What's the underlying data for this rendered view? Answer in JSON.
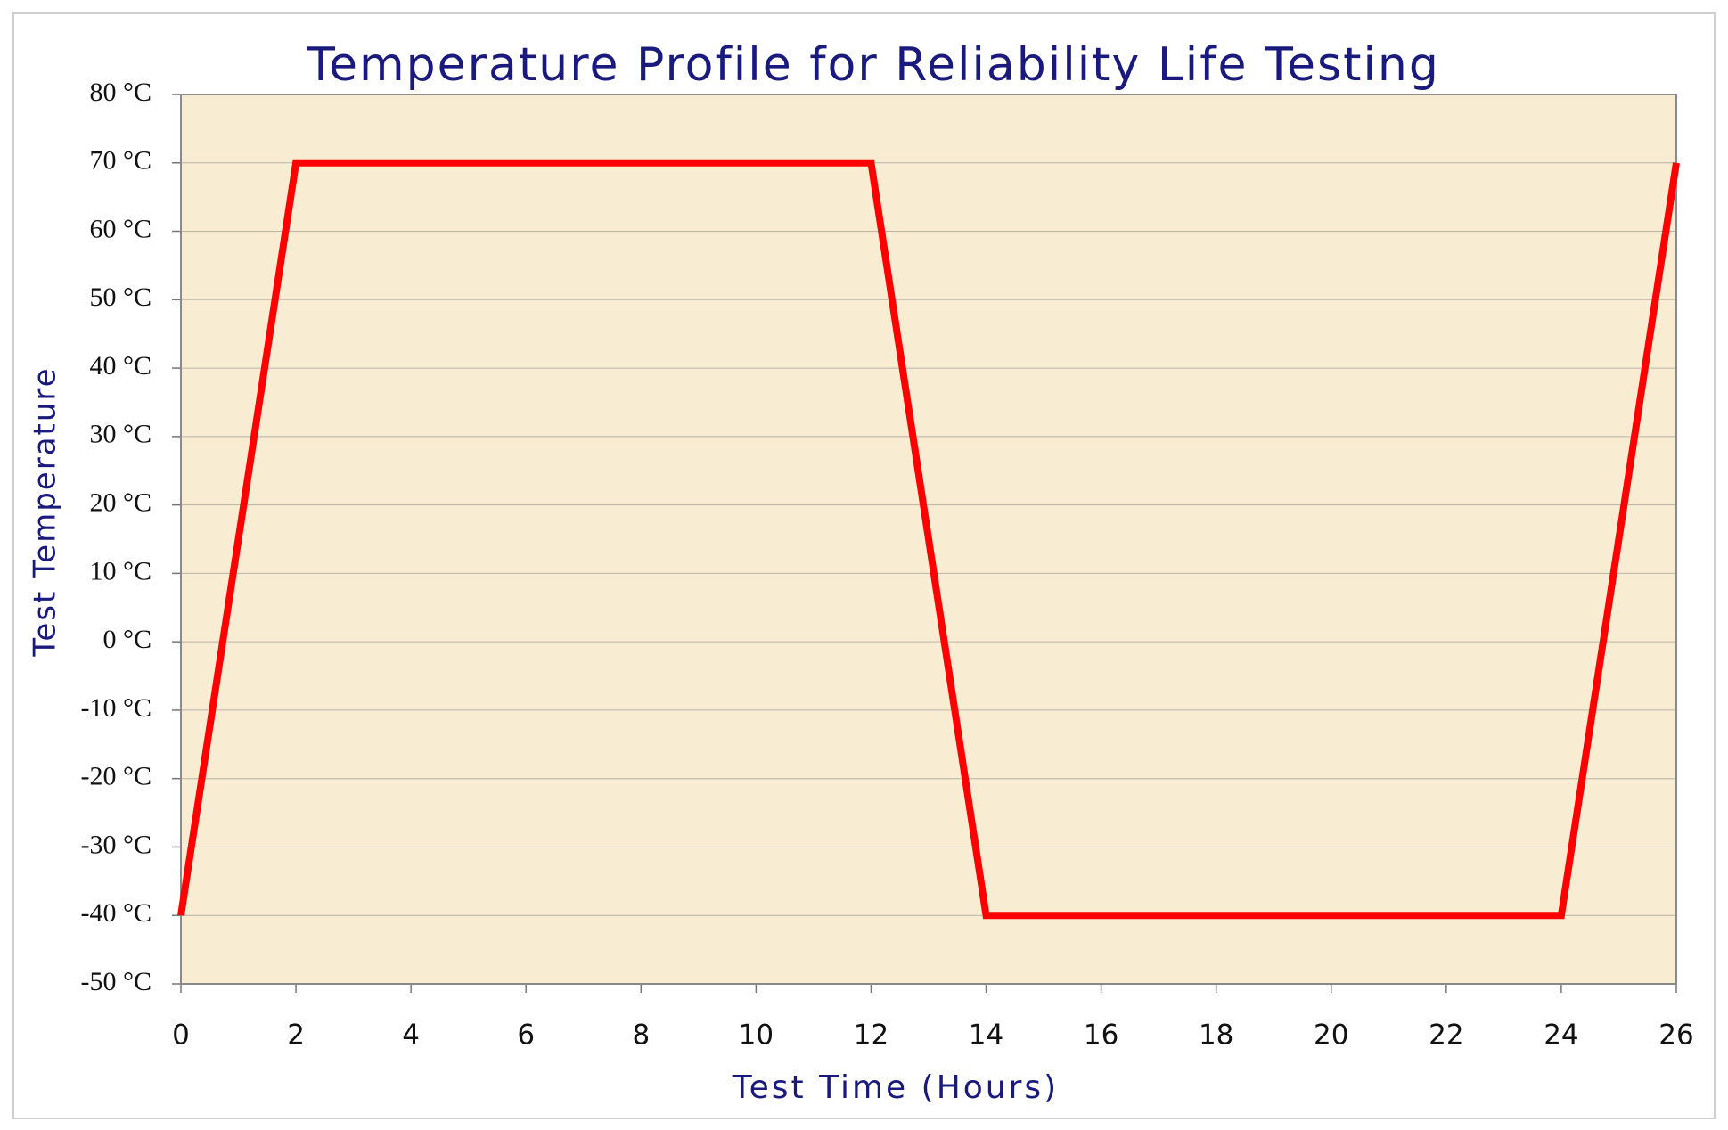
{
  "chart_data": {
    "type": "line",
    "title": "Temperature Profile for Reliability Life Testing",
    "x_label": "Test Time (Hours)",
    "y_label": "Test Temperature",
    "x": [
      0,
      2,
      12,
      14,
      24,
      26
    ],
    "series": [
      {
        "color": "#ff0000",
        "values": [
          -40,
          70,
          70,
          -40,
          -40,
          70
        ]
      }
    ],
    "xlim": [
      0,
      26
    ],
    "xticks": [
      0,
      2,
      4,
      6,
      8,
      10,
      12,
      14,
      16,
      18,
      20,
      22,
      24,
      26
    ],
    "ylim": [
      -50,
      80
    ],
    "yticks": [
      {
        "value": -50,
        "label": "-50 °C"
      },
      {
        "value": -40,
        "label": "-40 °C"
      },
      {
        "value": -30,
        "label": "-30 °C"
      },
      {
        "value": -20,
        "label": "-20 °C"
      },
      {
        "value": -10,
        "label": "-10 °C"
      },
      {
        "value": 0,
        "label": "0 °C"
      },
      {
        "value": 10,
        "label": "10 °C"
      },
      {
        "value": 20,
        "label": "20 °C"
      },
      {
        "value": 30,
        "label": "30 °C"
      },
      {
        "value": 40,
        "label": "40 °C"
      },
      {
        "value": 50,
        "label": "50 °C"
      },
      {
        "value": 60,
        "label": "60 °C"
      },
      {
        "value": 70,
        "label": "70 °C"
      },
      {
        "value": 80,
        "label": "80 °C"
      }
    ],
    "grid": true
  }
}
